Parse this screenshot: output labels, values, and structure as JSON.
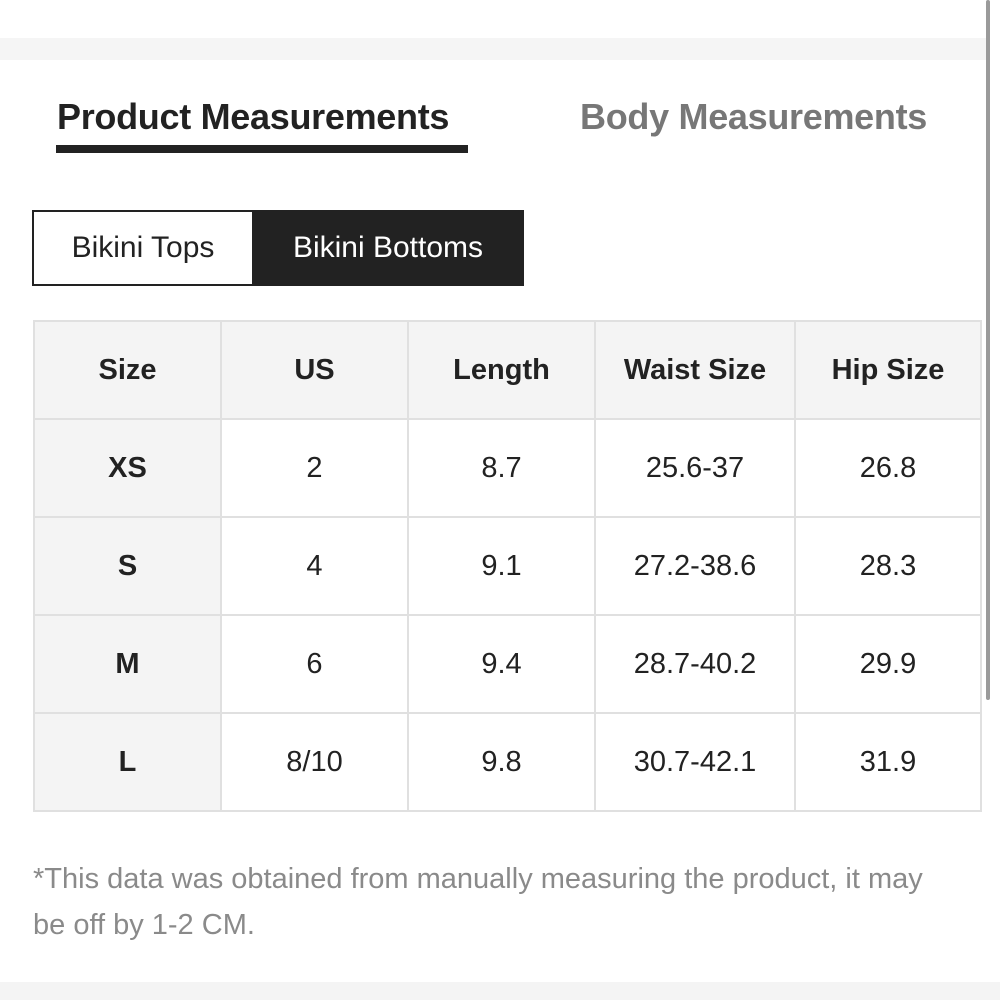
{
  "tabs": [
    {
      "label": "Product Measurements",
      "active": true
    },
    {
      "label": "Body Measurements",
      "active": false
    }
  ],
  "segments": [
    {
      "label": "Bikini Tops",
      "selected": false
    },
    {
      "label": "Bikini Bottoms",
      "selected": true
    }
  ],
  "table": {
    "headers": [
      "Size",
      "US",
      "Length",
      "Waist Size",
      "Hip Size"
    ],
    "rows": [
      [
        "XS",
        "2",
        "8.7",
        "25.6-37",
        "26.8"
      ],
      [
        "S",
        "4",
        "9.1",
        "27.2-38.6",
        "28.3"
      ],
      [
        "M",
        "6",
        "9.4",
        "28.7-40.2",
        "29.9"
      ],
      [
        "L",
        "8/10",
        "9.8",
        "30.7-42.1",
        "31.9"
      ]
    ]
  },
  "note": "*This data was obtained from manually measuring the product, it may be off by 1-2 CM."
}
